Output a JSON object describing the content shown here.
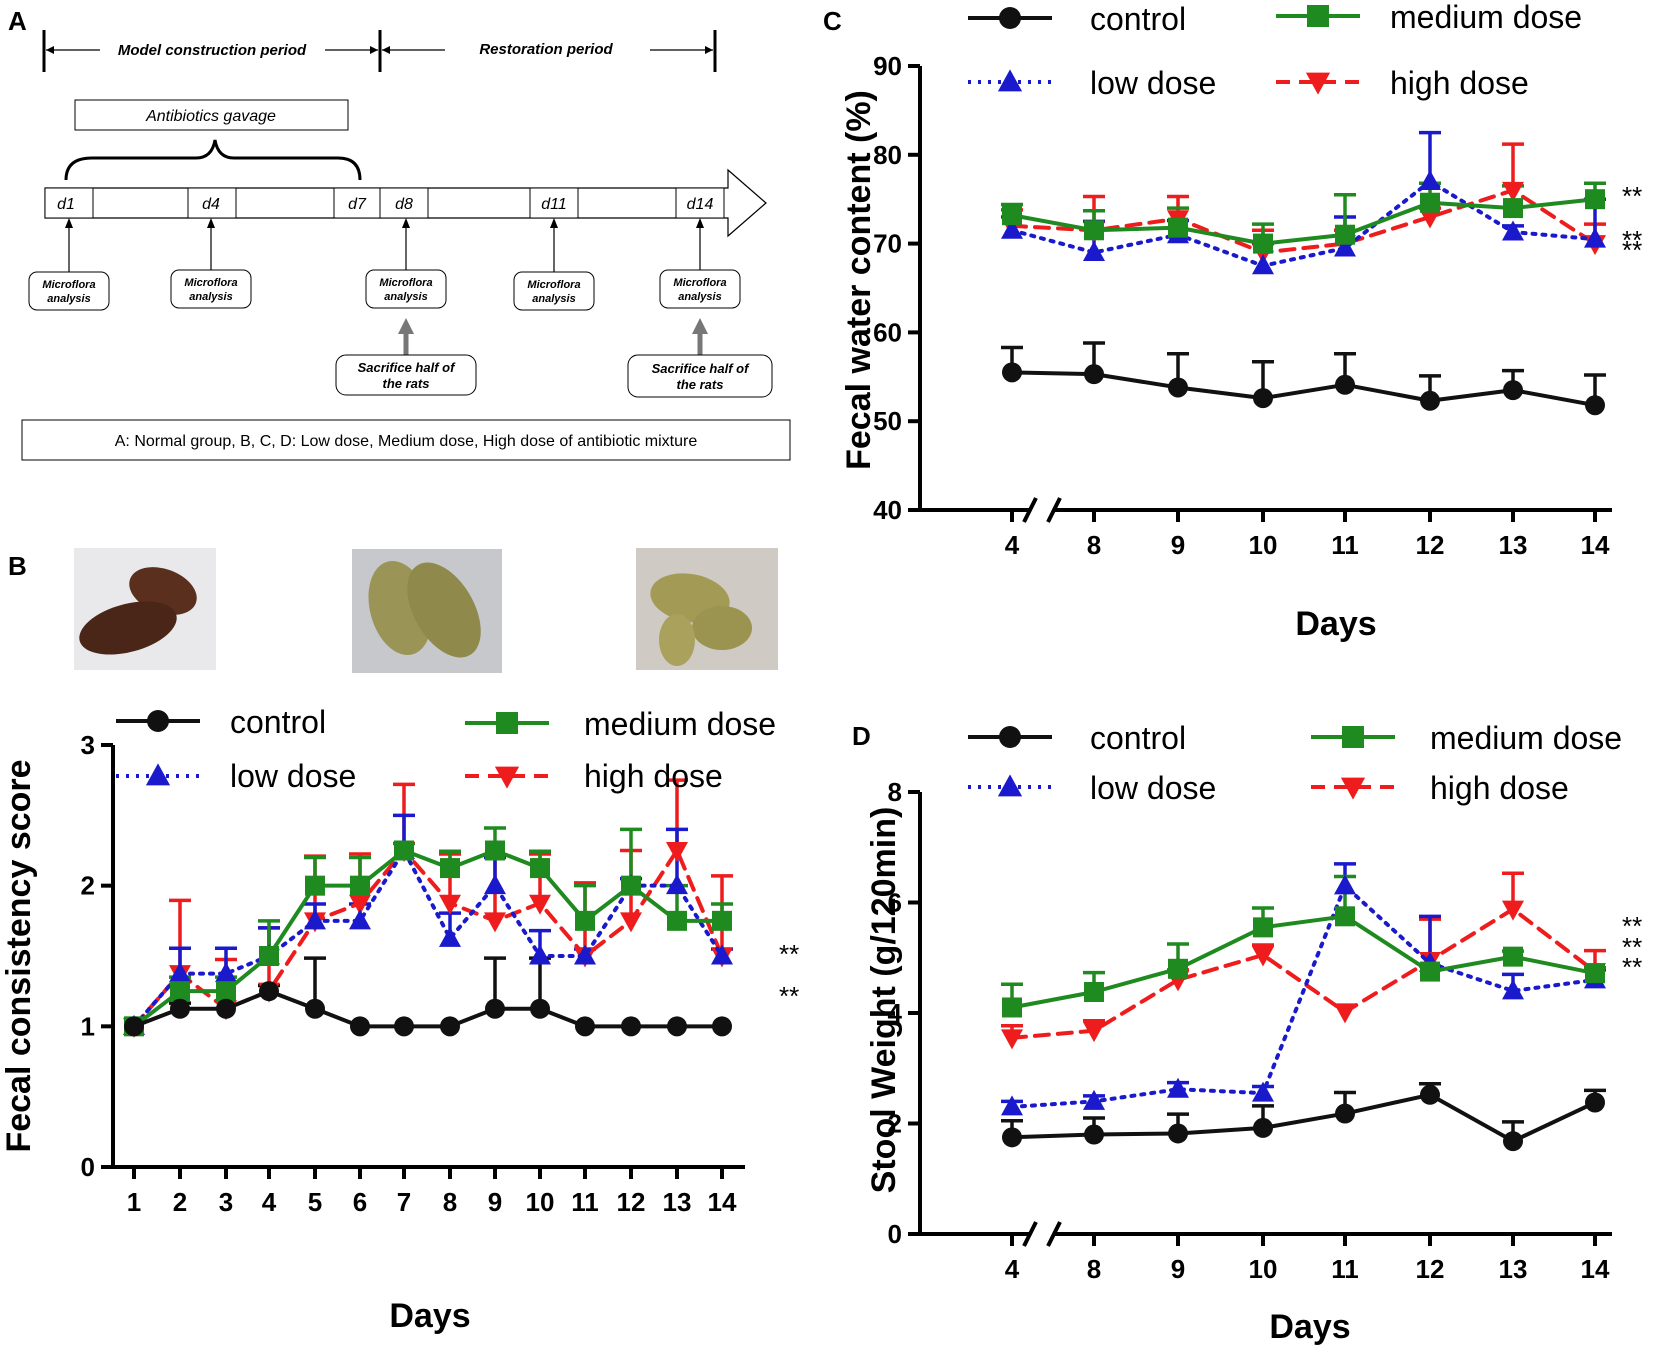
{
  "panel_letters": {
    "a": "A",
    "b": "B",
    "c": "C",
    "d": "D"
  },
  "timeline": {
    "period_model": "Model construction period",
    "period_restoration": "Restoration period",
    "gavage_label": "Antibiotics gavage",
    "days": [
      "d1",
      "d4",
      "d7",
      "d8",
      "d11",
      "d14"
    ],
    "microflora_line1": "Microflora",
    "microflora_line2": "analysis",
    "sacrifice_line1": "Sacrifice half of",
    "sacrifice_line2": "the rats",
    "groups_note": "A: Normal group,  B, C, D: Low dose, Medium dose, High dose of antibiotic mixture"
  },
  "photos": [
    {
      "description_name": "normal-feces-photo",
      "tone": "#5a2f1e"
    },
    {
      "description_name": "loose-feces-photo",
      "tone": "#9a9556"
    },
    {
      "description_name": "watery-feces-photo",
      "tone": "#a39a56"
    }
  ],
  "colors": {
    "control": "#111111",
    "low": "#1a1acc",
    "medium": "#1f8a1f",
    "high": "#ee1c1c"
  },
  "legend": {
    "control": "control",
    "low": "low dose",
    "medium": "medium dose",
    "high": "high dose"
  },
  "chart_data": [
    {
      "id": "B",
      "type": "line",
      "title": "",
      "xlabel": "Days",
      "ylabel": "Fecal consistency score",
      "categories": [
        "1",
        "2",
        "3",
        "4",
        "5",
        "6",
        "7",
        "8",
        "9",
        "10",
        "11",
        "12",
        "13",
        "14"
      ],
      "ylim": [
        0,
        3
      ],
      "yticks": [
        "0",
        "1",
        "2",
        "3"
      ],
      "series": [
        {
          "name": "control",
          "key": "control",
          "values": [
            1,
            1.125,
            1.125,
            1.25,
            1.125,
            1,
            1,
            1,
            1.125,
            1.125,
            1,
            1,
            1,
            1
          ],
          "err": [
            0,
            0.04,
            0,
            0.04,
            0.36,
            0,
            0,
            0,
            0.36,
            0.36,
            0,
            0,
            0,
            0
          ]
        },
        {
          "name": "low dose",
          "key": "low",
          "values": [
            1,
            1.375,
            1.375,
            1.5,
            1.75,
            1.75,
            2.25,
            1.625,
            2,
            1.5,
            1.5,
            2,
            2,
            1.5
          ],
          "err": [
            0,
            0.18,
            0.18,
            0.2,
            0.12,
            0.12,
            0.25,
            0.18,
            0.2,
            0.18,
            0.05,
            0.05,
            0.4,
            0.05
          ]
        },
        {
          "name": "medium dose",
          "key": "medium",
          "values": [
            1,
            1.25,
            1.25,
            1.5,
            2,
            2,
            2.25,
            2.125,
            2.25,
            2.125,
            1.75,
            2,
            1.75,
            1.75
          ],
          "err": [
            0,
            0.1,
            0.1,
            0.25,
            0.2,
            0.2,
            0.05,
            0.12,
            0.16,
            0.12,
            0.25,
            0.4,
            0.25,
            0.12
          ]
        },
        {
          "name": "high dose",
          "key": "high",
          "values": [
            1,
            1.375,
            1.125,
            1.25,
            1.75,
            1.875,
            2.25,
            1.875,
            1.75,
            1.875,
            1.5,
            1.75,
            2.25,
            1.5
          ],
          "err": [
            0,
            0.52,
            0.35,
            0.45,
            0.46,
            0.35,
            0.47,
            0.35,
            0.47,
            0.35,
            0.52,
            0.5,
            0.5,
            0.57
          ]
        }
      ],
      "significance": [
        {
          "series": "medium",
          "label": "**"
        },
        {
          "series": "high",
          "label": "**"
        }
      ]
    },
    {
      "id": "C",
      "type": "line",
      "title": "",
      "xlabel": "Days",
      "ylabel": "Fecal water content (%)",
      "categories": [
        "4",
        "8",
        "9",
        "10",
        "11",
        "12",
        "13",
        "14"
      ],
      "axis_break": "between 4 and 8",
      "ylim": [
        40,
        90
      ],
      "yticks": [
        "40",
        "50",
        "60",
        "70",
        "80",
        "90"
      ],
      "series": [
        {
          "name": "control",
          "key": "control",
          "values": [
            55.5,
            55.3,
            53.8,
            52.6,
            54.1,
            52.3,
            53.5,
            51.8
          ],
          "err": [
            2.8,
            3.5,
            3.8,
            4.1,
            3.5,
            2.8,
            2.2,
            3.4
          ]
        },
        {
          "name": "low dose",
          "key": "low",
          "values": [
            71.5,
            69,
            71,
            67.5,
            69.5,
            77,
            71.3,
            70.5
          ],
          "err": [
            1.5,
            3.5,
            1.6,
            2.5,
            3.5,
            5.5,
            0.7,
            4.5
          ]
        },
        {
          "name": "medium dose",
          "key": "medium",
          "values": [
            73.2,
            71.5,
            71.8,
            70,
            71,
            74.6,
            74,
            75
          ],
          "err": [
            1.2,
            2.2,
            2.2,
            2.2,
            4.5,
            2.2,
            2.5,
            1.8
          ]
        },
        {
          "name": "high dose",
          "key": "high",
          "values": [
            72,
            71.5,
            72.8,
            69,
            70,
            73,
            76,
            70
          ],
          "err": [
            1.8,
            3.8,
            2.5,
            2.5,
            1.5,
            1,
            5.2,
            2.2
          ]
        }
      ],
      "significance": [
        {
          "series": "medium",
          "label": "**"
        },
        {
          "series": "low",
          "label": "**"
        },
        {
          "series": "high",
          "label": "**"
        }
      ]
    },
    {
      "id": "D",
      "type": "line",
      "title": "",
      "xlabel": "Days",
      "ylabel": "Stool Weight (g/120min)",
      "categories": [
        "4",
        "8",
        "9",
        "10",
        "11",
        "12",
        "13",
        "14"
      ],
      "axis_break": "between 4 and 8",
      "ylim": [
        0,
        8
      ],
      "yticks": [
        "0",
        "2",
        "4",
        "6",
        "8"
      ],
      "series": [
        {
          "name": "control",
          "key": "control",
          "values": [
            1.75,
            1.8,
            1.82,
            1.92,
            2.18,
            2.52,
            1.68,
            2.38
          ],
          "err": [
            0.3,
            0.3,
            0.35,
            0.4,
            0.38,
            0.2,
            0.35,
            0.22
          ]
        },
        {
          "name": "low dose",
          "key": "low",
          "values": [
            2.3,
            2.4,
            2.62,
            2.55,
            6.3,
            4.9,
            4.4,
            4.6
          ],
          "err": [
            0.1,
            0.1,
            0.12,
            0.12,
            0.4,
            0.85,
            0.3,
            0.18
          ]
        },
        {
          "name": "medium dose",
          "key": "medium",
          "values": [
            4.1,
            4.38,
            4.8,
            5.55,
            5.75,
            4.75,
            5.02,
            4.72
          ],
          "err": [
            0.42,
            0.35,
            0.45,
            0.35,
            0.72,
            0.1,
            0.1,
            0.1
          ]
        },
        {
          "name": "high dose",
          "key": "high",
          "values": [
            3.55,
            3.68,
            4.6,
            5.05,
            4.02,
            4.95,
            5.88,
            4.75
          ],
          "err": [
            0.22,
            0.18,
            0.18,
            0.18,
            0.12,
            0.75,
            0.65,
            0.38
          ]
        }
      ],
      "significance": [
        {
          "series": "high",
          "label": "**"
        },
        {
          "series": "medium",
          "label": "**"
        },
        {
          "series": "low",
          "label": "**"
        }
      ]
    }
  ]
}
